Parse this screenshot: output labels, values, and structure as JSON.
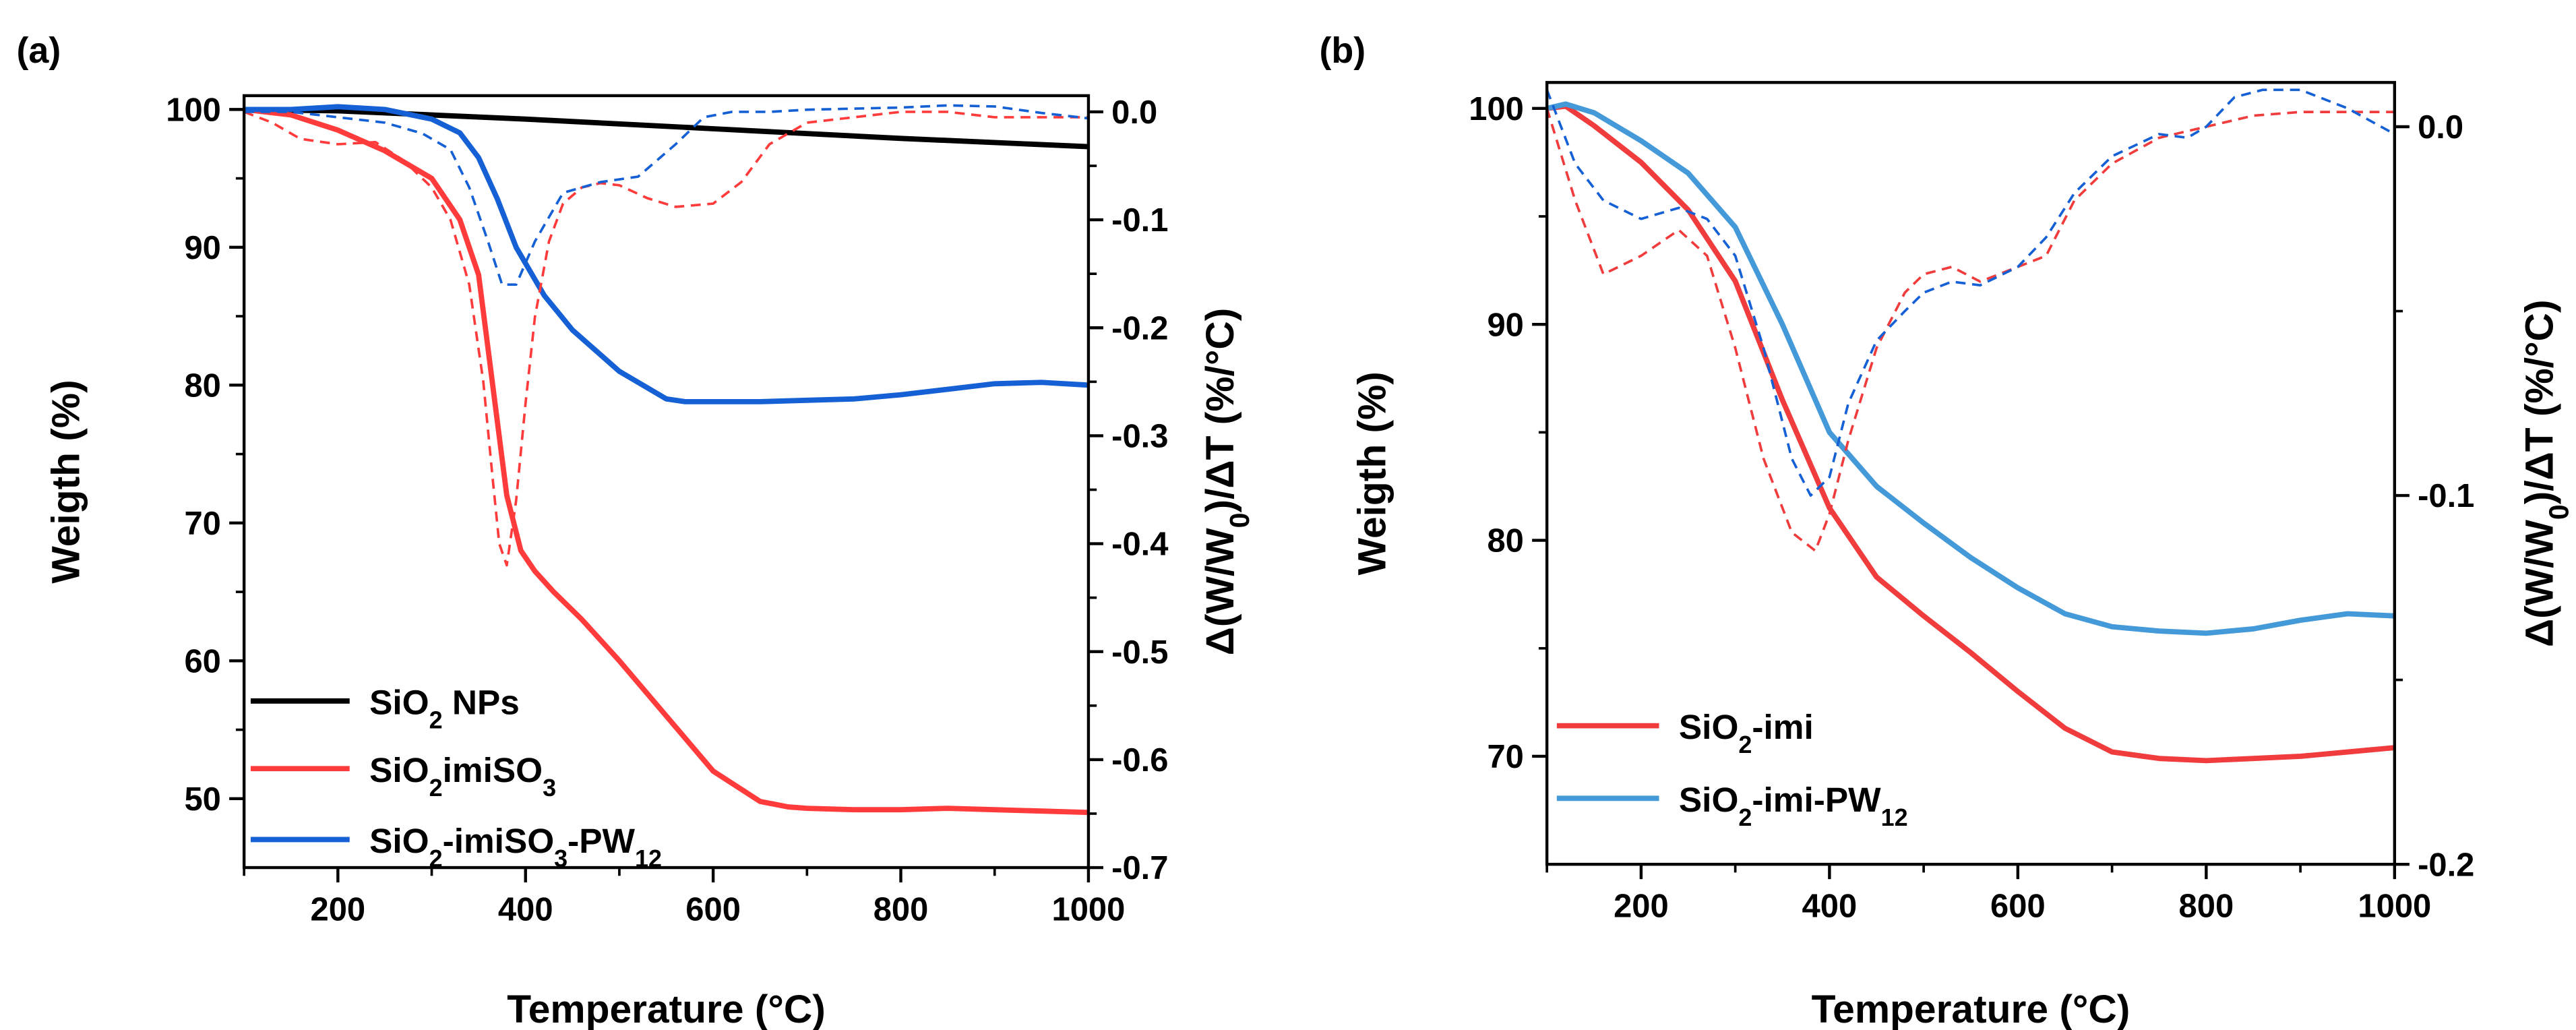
{
  "chart_data": [
    {
      "panel_label": "(a)",
      "type": "line",
      "xlabel": "Temperature (°C)",
      "ylabel": "Weigth (%)",
      "y2label": "Δ(W/W0)/ΔT (%/°C)",
      "xlim": [
        100,
        1000
      ],
      "ylim": [
        45,
        101
      ],
      "y2lim": [
        -0.7,
        0.015
      ],
      "xticks": [
        "200",
        "400",
        "600",
        "800",
        "1000"
      ],
      "yticks": [
        "50",
        "60",
        "70",
        "80",
        "90",
        "100"
      ],
      "y2ticks": [
        "0.0",
        "-0.1",
        "-0.2",
        "-0.3",
        "-0.4",
        "-0.5",
        "-0.6",
        "-0.7"
      ],
      "legend": {
        "position": "bottom-left",
        "entries": [
          {
            "label": "SiO₂ NPs",
            "color": "#000000"
          },
          {
            "label": "SiO₂imiSO₃",
            "color": "#ff3b3b"
          },
          {
            "label": "SiO₂-imiSO₃-PW₁₂",
            "color": "#1560d4"
          }
        ]
      },
      "series": [
        {
          "name": "SiO2 NPs",
          "axis": "left",
          "style": "solid",
          "color": "#000000",
          "x": [
            100,
            200,
            400,
            600,
            800,
            1000
          ],
          "y": [
            100,
            99.9,
            99.3,
            98.6,
            97.9,
            97.3
          ]
        },
        {
          "name": "SiO2imiSO3",
          "axis": "left",
          "style": "solid",
          "color": "#ff3b3b",
          "x": [
            100,
            150,
            200,
            250,
            300,
            330,
            350,
            365,
            380,
            395,
            410,
            430,
            460,
            500,
            550,
            600,
            650,
            680,
            700,
            750,
            800,
            850,
            900,
            950,
            1000
          ],
          "y": [
            100,
            99.6,
            98.5,
            97.0,
            95.0,
            92.0,
            88.0,
            80.0,
            72.0,
            68.0,
            66.5,
            65.0,
            63.0,
            60.0,
            56.0,
            52.0,
            49.8,
            49.4,
            49.3,
            49.2,
            49.2,
            49.3,
            49.2,
            49.1,
            49.0
          ]
        },
        {
          "name": "SiO2-imiSO3-PW12",
          "axis": "left",
          "style": "solid",
          "color": "#1560d4",
          "x": [
            100,
            150,
            200,
            250,
            300,
            330,
            350,
            370,
            390,
            420,
            450,
            500,
            550,
            570,
            600,
            650,
            700,
            750,
            800,
            850,
            900,
            950,
            1000
          ],
          "y": [
            100,
            100,
            100.2,
            100.0,
            99.3,
            98.3,
            96.5,
            93.5,
            90.0,
            86.5,
            84.0,
            81.0,
            79.0,
            78.8,
            78.8,
            78.8,
            78.9,
            79.0,
            79.3,
            79.7,
            80.1,
            80.2,
            80.0
          ]
        },
        {
          "name": "SiO2imiSO3 derivative",
          "axis": "right",
          "style": "dashed",
          "color": "#ff3b3b",
          "x": [
            100,
            130,
            160,
            200,
            240,
            270,
            300,
            320,
            340,
            355,
            365,
            372,
            380,
            390,
            400,
            410,
            425,
            440,
            460,
            480,
            500,
            530,
            560,
            600,
            630,
            660,
            700,
            750,
            800,
            850,
            900,
            950,
            1000
          ],
          "y": [
            0.0,
            -0.01,
            -0.025,
            -0.03,
            -0.028,
            -0.045,
            -0.07,
            -0.1,
            -0.16,
            -0.25,
            -0.34,
            -0.4,
            -0.42,
            -0.36,
            -0.27,
            -0.19,
            -0.12,
            -0.085,
            -0.07,
            -0.066,
            -0.068,
            -0.08,
            -0.088,
            -0.085,
            -0.065,
            -0.03,
            -0.01,
            -0.005,
            0.0,
            0.0,
            -0.005,
            -0.005,
            -0.005
          ]
        },
        {
          "name": "SiO2-imiSO3-PW12 derivative",
          "axis": "right",
          "style": "dashed",
          "color": "#1560d4",
          "x": [
            100,
            150,
            200,
            250,
            290,
            320,
            340,
            360,
            375,
            390,
            410,
            440,
            480,
            520,
            560,
            590,
            620,
            660,
            700,
            750,
            800,
            850,
            900,
            950,
            1000
          ],
          "y": [
            0.0,
            0.0,
            -0.005,
            -0.01,
            -0.02,
            -0.035,
            -0.07,
            -0.12,
            -0.16,
            -0.16,
            -0.12,
            -0.075,
            -0.065,
            -0.06,
            -0.03,
            -0.005,
            0.0,
            0.0,
            0.002,
            0.003,
            0.004,
            0.006,
            0.005,
            -0.001,
            -0.006
          ]
        }
      ]
    },
    {
      "panel_label": "(b)",
      "type": "line",
      "xlabel": "Temperature (°C)",
      "ylabel": "Weigth (%)",
      "y2label": "Δ(W/W0)/ΔT (%/°C)",
      "xlim": [
        100,
        1000
      ],
      "ylim": [
        65,
        101.2
      ],
      "y2lim": [
        -0.2,
        0.012
      ],
      "xticks": [
        "200",
        "400",
        "600",
        "800",
        "1000"
      ],
      "yticks": [
        "70",
        "80",
        "90",
        "100"
      ],
      "y2ticks": [
        "0.0",
        "-0.1",
        "-0.2"
      ],
      "legend": {
        "position": "bottom-left",
        "entries": [
          {
            "label": "SiO₂-imi",
            "color": "#f03c3c"
          },
          {
            "label": "SiO₂-imi-PW₁₂",
            "color": "#4499d8"
          }
        ]
      },
      "series": [
        {
          "name": "SiO2-imi",
          "axis": "left",
          "style": "solid",
          "color": "#f03c3c",
          "x": [
            100,
            120,
            150,
            200,
            250,
            300,
            350,
            400,
            450,
            500,
            550,
            600,
            650,
            700,
            750,
            800,
            850,
            900,
            950,
            1000
          ],
          "y": [
            100,
            100.1,
            99.2,
            97.5,
            95.3,
            92.0,
            86.5,
            81.5,
            78.3,
            76.5,
            74.8,
            73.0,
            71.3,
            70.2,
            69.9,
            69.8,
            69.9,
            70.0,
            70.2,
            70.4
          ]
        },
        {
          "name": "SiO2-imi-PW12",
          "axis": "left",
          "style": "solid",
          "color": "#4499d8",
          "x": [
            100,
            120,
            150,
            200,
            250,
            300,
            350,
            400,
            450,
            500,
            550,
            600,
            650,
            700,
            750,
            800,
            850,
            900,
            950,
            1000
          ],
          "y": [
            100,
            100.2,
            99.8,
            98.5,
            97.0,
            94.5,
            90.0,
            85.0,
            82.5,
            80.8,
            79.2,
            77.8,
            76.6,
            76.0,
            75.8,
            75.7,
            75.9,
            76.3,
            76.6,
            76.5
          ]
        },
        {
          "name": "SiO2-imi derivative",
          "axis": "right",
          "style": "dashed",
          "color": "#f03c3c",
          "x": [
            100,
            130,
            160,
            200,
            240,
            270,
            300,
            330,
            360,
            385,
            400,
            420,
            450,
            480,
            500,
            530,
            560,
            600,
            630,
            660,
            700,
            750,
            800,
            850,
            900,
            950,
            1000
          ],
          "y": [
            0.005,
            -0.02,
            -0.04,
            -0.035,
            -0.028,
            -0.035,
            -0.06,
            -0.09,
            -0.11,
            -0.115,
            -0.105,
            -0.085,
            -0.06,
            -0.045,
            -0.04,
            -0.038,
            -0.042,
            -0.038,
            -0.035,
            -0.02,
            -0.01,
            -0.003,
            0.0,
            0.003,
            0.004,
            0.004,
            0.004
          ]
        },
        {
          "name": "SiO2-imi-PW12 derivative",
          "axis": "right",
          "style": "dashed",
          "color": "#1560d4",
          "x": [
            100,
            130,
            160,
            200,
            240,
            270,
            300,
            330,
            360,
            380,
            400,
            420,
            450,
            480,
            500,
            530,
            560,
            600,
            630,
            660,
            700,
            750,
            780,
            800,
            830,
            860,
            900,
            950,
            1000
          ],
          "y": [
            0.01,
            -0.01,
            -0.02,
            -0.025,
            -0.022,
            -0.025,
            -0.035,
            -0.06,
            -0.09,
            -0.1,
            -0.095,
            -0.075,
            -0.058,
            -0.05,
            -0.045,
            -0.042,
            -0.043,
            -0.038,
            -0.03,
            -0.018,
            -0.008,
            -0.002,
            -0.003,
            0.0,
            0.008,
            0.01,
            0.01,
            0.005,
            -0.002
          ]
        }
      ]
    }
  ]
}
